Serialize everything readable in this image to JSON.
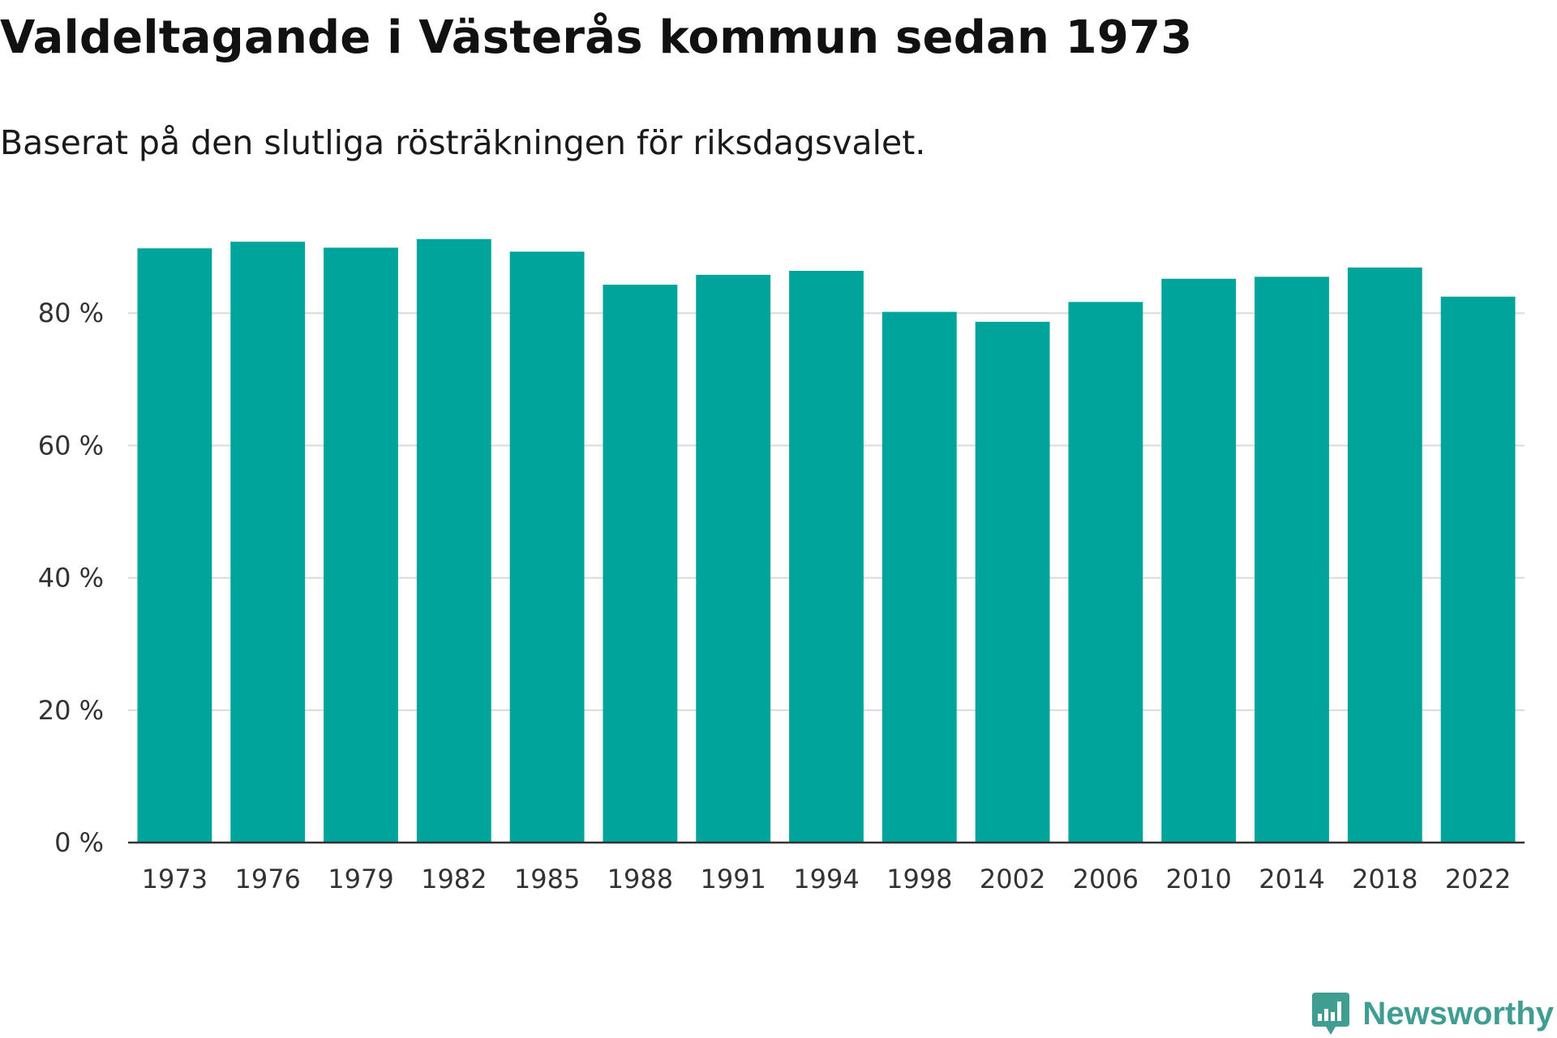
{
  "chart_data": {
    "type": "bar",
    "title": "Valdeltagande i Västerås kommun sedan 1973",
    "subtitle": "Baserat på den slutliga rösträkningen för riksdagsvalet.",
    "xlabel": "",
    "ylabel": "",
    "categories": [
      "1973",
      "1976",
      "1979",
      "1982",
      "1985",
      "1988",
      "1991",
      "1994",
      "1998",
      "2002",
      "2006",
      "2010",
      "2014",
      "2018",
      "2022"
    ],
    "values": [
      89.8,
      90.8,
      89.9,
      91.2,
      89.3,
      84.3,
      85.8,
      86.4,
      80.2,
      78.7,
      81.7,
      85.2,
      85.5,
      86.9,
      82.5
    ],
    "ylim": [
      0,
      100
    ],
    "yticks": [
      0,
      20,
      40,
      60,
      80
    ],
    "ytick_labels": [
      "0 %",
      "20 %",
      "40 %",
      "60 %",
      "80 %"
    ],
    "grid": true,
    "bar_color": "#00a49a",
    "legend": "none"
  },
  "branding": {
    "name": "Newsworthy",
    "color": "#3f9e91",
    "icon": "bar-chart-speech-bubble-icon"
  }
}
